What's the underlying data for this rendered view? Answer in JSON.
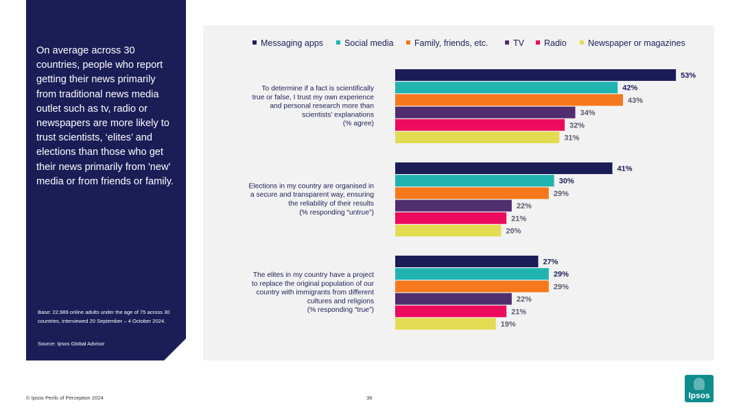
{
  "side_panel": {
    "headline": "On average across 30 countries, people who report getting their news primarily from traditional news media outlet such as tv, radio or newspapers are more likely to trust scientists, ‘elites’ and elections than those who get their news primarily from 'new' media or from friends or family.",
    "base": "Base: 22,989 online adults under the age of 75 across 30 countries, interviewed 20 September – 4 October 2024.",
    "source": "Source: Ipsos Global Advisor"
  },
  "footer": {
    "copyright": "© Ipsos Perils of Perception 2024",
    "page_number": "36"
  },
  "logo": {
    "text": "Ipsos"
  },
  "chart_data": {
    "type": "bar",
    "orientation": "horizontal",
    "title": "",
    "legend_position": "top",
    "categories": [
      [
        "To determine if a fact is scientifically",
        "true or false, I trust my own experience",
        "and personal research more than",
        "scientists' explanations",
        "(% agree)"
      ],
      [
        "Elections in my country are organised in",
        "a secure and transparent way, ensuring",
        "the reliability of their results",
        "(% responding “untrue”)"
      ],
      [
        "The elites in my country have a project",
        "to replace the original population of our",
        "country with immigrants from different",
        "cultures and religions",
        "(% responding “true”)"
      ]
    ],
    "series": [
      {
        "name": "Messaging apps",
        "color": "#1b1d57",
        "values": [
          53,
          41,
          27
        ]
      },
      {
        "name": "Social media",
        "color": "#21b3b0",
        "values": [
          42,
          30,
          29
        ]
      },
      {
        "name": "Family, friends, etc.",
        "color": "#f7781c",
        "values": [
          43,
          29,
          29
        ]
      },
      {
        "name": "TV",
        "color": "#4f2d6e",
        "values": [
          34,
          22,
          22
        ]
      },
      {
        "name": "Radio",
        "color": "#ec0b5c",
        "values": [
          32,
          21,
          21
        ]
      },
      {
        "name": "Newspaper or magazines",
        "color": "#e3db52",
        "values": [
          31,
          20,
          19
        ]
      }
    ],
    "value_suffix": "%",
    "xlim": [
      0,
      60
    ]
  }
}
